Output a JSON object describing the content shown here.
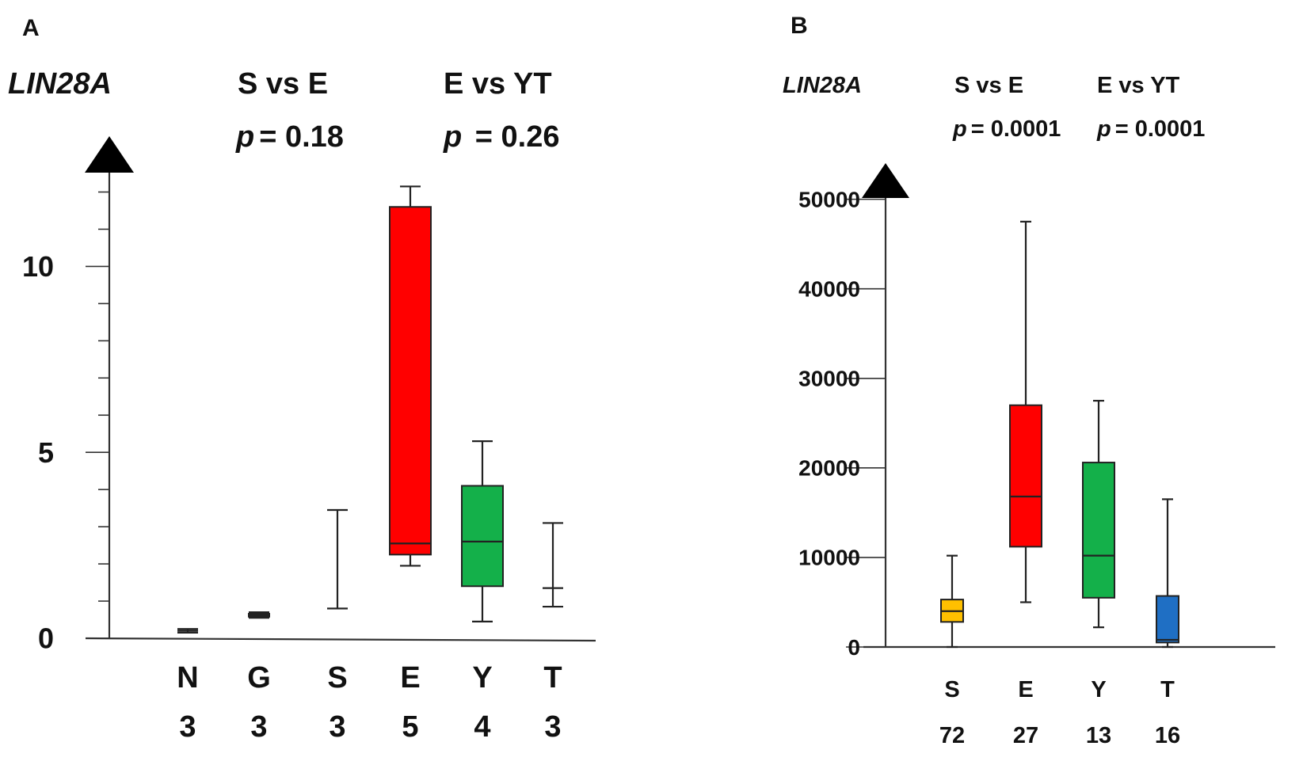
{
  "chart_data": [
    {
      "panel": "A",
      "type": "box",
      "gene_label": "LIN28A",
      "comparisons": [
        {
          "label": "S vs E",
          "p_symbol": "p",
          "p_value": "= 0.18"
        },
        {
          "label": "E vs YT",
          "p_symbol": "p",
          "p_value": " = 0.26"
        }
      ],
      "ylim": [
        0,
        12.5
      ],
      "yticks": [
        0,
        5,
        10
      ],
      "ytick_labels": [
        "0",
        "5",
        "10"
      ],
      "minor_step": 1,
      "categories": [
        "N",
        "G",
        "S",
        "E",
        "Y",
        "T"
      ],
      "counts": [
        "3",
        "3",
        "3",
        "5",
        "4",
        "3"
      ],
      "boxes": [
        {
          "name": "N",
          "min": 0.15,
          "q1": 0.18,
          "median": 0.2,
          "q3": 0.22,
          "max": 0.25,
          "color": null
        },
        {
          "name": "G",
          "min": 0.55,
          "q1": 0.58,
          "median": 0.62,
          "q3": 0.66,
          "max": 0.7,
          "color": null
        },
        {
          "name": "S",
          "min": 0.8,
          "q1": 0.8,
          "median": 0.8,
          "q3": 0.8,
          "max": 3.45,
          "color": null
        },
        {
          "name": "E",
          "min": 1.95,
          "q1": 2.25,
          "median": 2.55,
          "q3": 11.6,
          "max": 12.15,
          "color": "#ff0000"
        },
        {
          "name": "Y",
          "min": 0.45,
          "q1": 1.4,
          "median": 2.6,
          "q3": 4.1,
          "max": 5.3,
          "color": "#14b04a"
        },
        {
          "name": "T",
          "min": 0.85,
          "q1": 1.35,
          "median": 1.35,
          "q3": 1.35,
          "max": 3.1,
          "color": null
        }
      ]
    },
    {
      "panel": "B",
      "type": "box",
      "gene_label": "LIN28A",
      "comparisons": [
        {
          "label": "S vs E",
          "p_symbol": "p",
          "p_value": "= 0.0001"
        },
        {
          "label": "E vs YT",
          "p_symbol": "p",
          "p_value": "= 0.0001"
        }
      ],
      "ylim": [
        0,
        52000
      ],
      "yticks": [
        0,
        10000,
        20000,
        30000,
        40000,
        50000
      ],
      "ytick_labels": [
        "0",
        "10000",
        "20000",
        "30000",
        "40000",
        "50000"
      ],
      "categories": [
        "S",
        "E",
        "Y",
        "T"
      ],
      "counts": [
        "72",
        "27",
        "13",
        "16"
      ],
      "boxes": [
        {
          "name": "S",
          "min": 0,
          "q1": 2800,
          "median": 4000,
          "q3": 5300,
          "max": 10200,
          "color": "#ffc000"
        },
        {
          "name": "E",
          "min": 5000,
          "q1": 11200,
          "median": 16800,
          "q3": 27000,
          "max": 47500,
          "color": "#ff0000"
        },
        {
          "name": "Y",
          "min": 2200,
          "q1": 5500,
          "median": 10200,
          "q3": 20600,
          "max": 27500,
          "color": "#14b04a"
        },
        {
          "name": "T",
          "min": 0,
          "q1": 500,
          "median": 800,
          "q3": 5700,
          "max": 16500,
          "color": "#1f6fc4"
        }
      ]
    }
  ]
}
